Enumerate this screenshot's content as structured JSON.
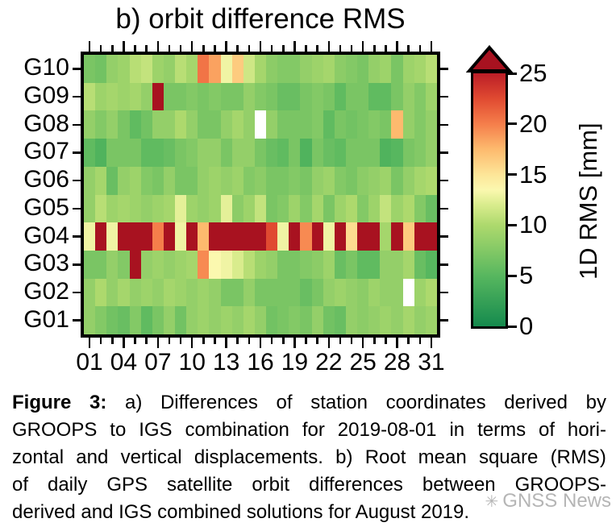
{
  "title": "b) orbit difference RMS",
  "chart_data": {
    "type": "heatmap",
    "title": "b) orbit difference RMS",
    "x_axis": {
      "days": 31,
      "tick_labels": [
        "01",
        "04",
        "07",
        "10",
        "13",
        "16",
        "19",
        "22",
        "25",
        "28",
        "31"
      ],
      "labeled_days": [
        1,
        4,
        7,
        10,
        13,
        16,
        19,
        22,
        25,
        28,
        31
      ]
    },
    "y_axis_note": "GPS satellites, G01 bottom to G10 top",
    "units": "mm",
    "colorbar": {
      "label": "1D RMS [mm]",
      "ticks": [
        25,
        20,
        15,
        10,
        5,
        0
      ],
      "range": [
        0,
        25
      ],
      "overflow_arrow": true
    },
    "missing_cells_white": [
      [
        "G08",
        16
      ],
      [
        "G02",
        29
      ]
    ],
    "rows_top_to_bottom": [
      {
        "name": "G10",
        "values": [
          7,
          6.5,
          8.5,
          9,
          10.5,
          11,
          9,
          8.5,
          10.5,
          9.5,
          20.5,
          18.5,
          13,
          16.5,
          11.5,
          9.5,
          8,
          7.5,
          7.5,
          8.5,
          9,
          9.5,
          8,
          7.5,
          7,
          8.5,
          9,
          7,
          9,
          9.5,
          10.5
        ]
      },
      {
        "name": "G09",
        "values": [
          10.5,
          9,
          9.5,
          9,
          9.5,
          8.5,
          26,
          7,
          7,
          7.5,
          7,
          7.5,
          7,
          7,
          8.5,
          7.5,
          7,
          6,
          6,
          7,
          7.5,
          7,
          5.5,
          7,
          7,
          5.5,
          5.5,
          7,
          8.5,
          7.5,
          9
        ]
      },
      {
        "name": "G08",
        "values": [
          8.5,
          7.5,
          8.5,
          7,
          5.5,
          6.5,
          8.5,
          8.5,
          10,
          8.5,
          7,
          7,
          8.5,
          9.5,
          8.5,
          null,
          8.5,
          7,
          7,
          7,
          7.5,
          5.5,
          7,
          6.5,
          7,
          7.5,
          7,
          17.5,
          8.5,
          7.5,
          8.5
        ]
      },
      {
        "name": "G07",
        "values": [
          5.5,
          4.5,
          7,
          7,
          7,
          5.5,
          5.5,
          6,
          7,
          7.5,
          8.5,
          8.5,
          7,
          8.5,
          8.5,
          7,
          6,
          5.5,
          7,
          4.5,
          7,
          6,
          5.5,
          7,
          7,
          7,
          4.5,
          5,
          7,
          7.5,
          8.5
        ]
      },
      {
        "name": "G06",
        "values": [
          8.5,
          9.5,
          6,
          8.5,
          9,
          7.5,
          7,
          8.5,
          7,
          7,
          8.5,
          9,
          8.5,
          9,
          7.5,
          8,
          7,
          7,
          7.5,
          7,
          8.5,
          9,
          7.5,
          7,
          8,
          8.5,
          9,
          7,
          8.5,
          9.5,
          10
        ]
      },
      {
        "name": "G05",
        "values": [
          8.5,
          10.5,
          9,
          9.5,
          9,
          8.5,
          9,
          9.5,
          12.5,
          9,
          8.5,
          9,
          12.5,
          8,
          9,
          11,
          7,
          7.5,
          9,
          7.5,
          9.5,
          7,
          9,
          10,
          7.5,
          9,
          11,
          9,
          10,
          7.5,
          6
        ]
      },
      {
        "name": "G04",
        "values": [
          13,
          26,
          13,
          26,
          26,
          26,
          20,
          26,
          13,
          26,
          17.5,
          26,
          26,
          26,
          26,
          26,
          22.5,
          13,
          26,
          19.5,
          26,
          13,
          26,
          15.5,
          26,
          26,
          9.5,
          26,
          16.5,
          26,
          26
        ]
      },
      {
        "name": "G03",
        "values": [
          7,
          7,
          8.5,
          7.5,
          26,
          8.5,
          9,
          8.5,
          9,
          9.5,
          19.5,
          13.5,
          13,
          12,
          10.5,
          9,
          8.5,
          7,
          7,
          7.5,
          8,
          9,
          6,
          7,
          5.5,
          5.5,
          8.5,
          8.5,
          9.5,
          6,
          5
        ]
      },
      {
        "name": "G02",
        "values": [
          8.5,
          10,
          8.5,
          9.5,
          8.5,
          9,
          8.5,
          9.5,
          9,
          8.5,
          9,
          8.5,
          7,
          7,
          8.5,
          7,
          7,
          7,
          7,
          6,
          7,
          8.5,
          9,
          8.5,
          8,
          9,
          8.5,
          8.5,
          null,
          9,
          10
        ]
      },
      {
        "name": "G01",
        "values": [
          8.5,
          7.5,
          6.5,
          6,
          7.5,
          5.5,
          7,
          8.5,
          6.5,
          8.5,
          9,
          8.5,
          9,
          8.5,
          9.5,
          8.5,
          6.5,
          7,
          7.5,
          7,
          8.5,
          6.5,
          6,
          8.5,
          8,
          8.5,
          9,
          8.5,
          9.5,
          8.5,
          9
        ]
      }
    ]
  },
  "colors": {
    "colormap_stops": [
      [
        0,
        "#158a4e"
      ],
      [
        5,
        "#57b75f"
      ],
      [
        8,
        "#8ccc67"
      ],
      [
        10,
        "#add96d"
      ],
      [
        12,
        "#d9ec8d"
      ],
      [
        13.5,
        "#fbf8af"
      ],
      [
        15,
        "#fde598"
      ],
      [
        17.5,
        "#fdba6e"
      ],
      [
        20,
        "#f57e4b"
      ],
      [
        22.5,
        "#e04a31"
      ],
      [
        25,
        "#bb1d27"
      ]
    ],
    "overflow": "#a81220",
    "missing": "#ffffff",
    "axis": "#000000"
  },
  "caption": {
    "lines": [
      {
        "bold_prefix": "Figure 3:",
        "text": "a) Differences of station coordinates derived by",
        "justify": true
      },
      {
        "bold_prefix": "",
        "text": "GROOPS to IGS combination for 2019-08-01 in terms of hori-",
        "justify": true
      },
      {
        "bold_prefix": "",
        "text": "zontal and vertical displacements. b) Root mean square (RMS)",
        "justify": true
      },
      {
        "bold_prefix": "",
        "text": "of daily GPS satellite orbit differences between GROOPS-",
        "justify": true
      },
      {
        "bold_prefix": "",
        "text": "derived and IGS combined solutions for August 2019.",
        "justify": false
      }
    ]
  },
  "watermark": {
    "text": "GNSS News",
    "icon": "✳"
  }
}
